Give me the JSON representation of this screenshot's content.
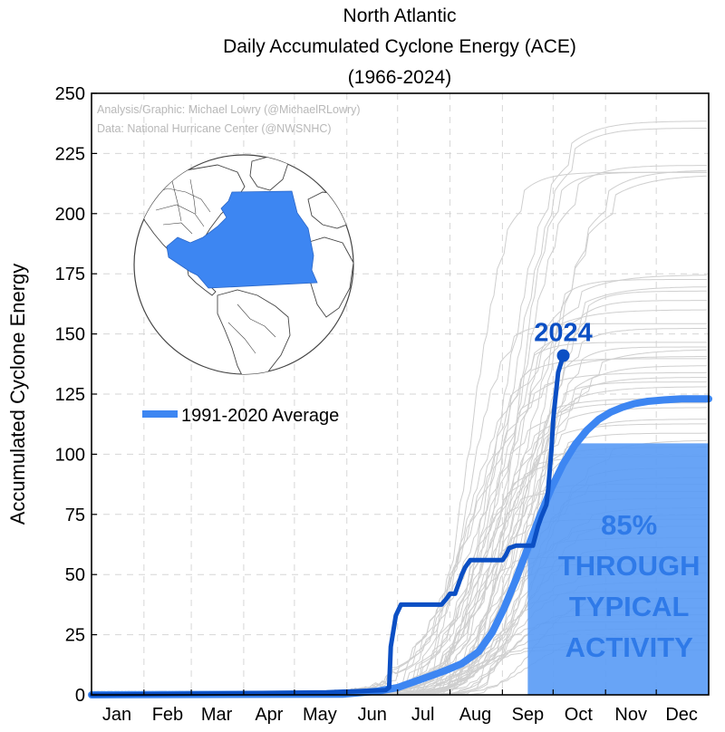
{
  "chart_data": {
    "type": "line",
    "title_lines": [
      "North Atlantic",
      "Daily Accumulated Cyclone Energy (ACE)",
      "(1966-2024)"
    ],
    "ylabel": "Accumulated Cyclone Energy",
    "xlabel": "",
    "ylim": [
      0,
      250
    ],
    "xlim": [
      1,
      366
    ],
    "yticks": [
      0,
      25,
      50,
      75,
      100,
      125,
      150,
      175,
      200,
      225,
      250
    ],
    "xtick_labels": [
      {
        "label": "Jan",
        "day": 16
      },
      {
        "label": "Feb",
        "day": 46
      },
      {
        "label": "Mar",
        "day": 75
      },
      {
        "label": "Apr",
        "day": 106
      },
      {
        "label": "May",
        "day": 136
      },
      {
        "label": "Jun",
        "day": 167
      },
      {
        "label": "Jul",
        "day": 197
      },
      {
        "label": "Aug",
        "day": 228
      },
      {
        "label": "Sep",
        "day": 259
      },
      {
        "label": "Oct",
        "day": 289
      },
      {
        "label": "Nov",
        "day": 320
      },
      {
        "label": "Dec",
        "day": 350
      }
    ],
    "month_boundaries": [
      32,
      60,
      91,
      121,
      152,
      182,
      213,
      244,
      274,
      305,
      335
    ],
    "grid": true,
    "credits": [
      "Analysis/Graphic: Michael Lowry (@MichaelRLowry)",
      "Data: National Hurricane Center (@NWSNHC)"
    ],
    "legend": {
      "label": "1991-2020 Average",
      "position": "middle-left"
    },
    "average_series": {
      "name": "1991-2020 Average",
      "color": "#3d86f2",
      "x": [
        1,
        150,
        170,
        182,
        190,
        200,
        210,
        220,
        230,
        238,
        245,
        252,
        259,
        266,
        273,
        280,
        287,
        294,
        301,
        308,
        315,
        322,
        330,
        340,
        350,
        366
      ],
      "y": [
        0,
        0.3,
        1.5,
        3,
        5,
        7.5,
        10,
        13,
        18,
        26,
        36,
        48,
        61,
        74,
        86,
        96,
        104,
        110,
        114.5,
        117.5,
        119.5,
        121,
        122,
        122.6,
        123,
        123
      ]
    },
    "current_series": {
      "name": "2024",
      "color": "#0b4fc4",
      "x": [
        1,
        140,
        175,
        177,
        178,
        181,
        184,
        187,
        190,
        200,
        208,
        211,
        213,
        216,
        218,
        220,
        222,
        225,
        233,
        240,
        244,
        246,
        248,
        252,
        258,
        262,
        265,
        267,
        270,
        271,
        273,
        274,
        275,
        277,
        280
      ],
      "y": [
        0,
        1,
        2,
        3,
        20,
        33,
        37.5,
        37.5,
        37.5,
        37.5,
        37.5,
        40,
        42,
        42,
        46,
        50,
        53,
        56,
        56,
        56,
        56,
        58,
        61,
        62,
        62,
        62,
        70,
        74,
        79,
        85,
        102,
        114,
        121,
        134,
        141
      ]
    },
    "current_label": "2024",
    "shaded_fraction": {
      "percent": 85,
      "value": 104.5,
      "x_start": 259,
      "x_end": 366
    },
    "overlay_text": [
      "85%",
      "THROUGH",
      "TYPICAL",
      "ACTIVITY"
    ],
    "historical_final_values": [
      247,
      244,
      228,
      226,
      225,
      225,
      224,
      181,
      179,
      176,
      174,
      170,
      166,
      160,
      158,
      152,
      150,
      149,
      146,
      145,
      142,
      139,
      137,
      135,
      133,
      128,
      126,
      124,
      119,
      117,
      113,
      110,
      107,
      103,
      98,
      94,
      91,
      88,
      85,
      81,
      78,
      76,
      73,
      68,
      64,
      60,
      57,
      53,
      49,
      45,
      42,
      38,
      35,
      32,
      29,
      26,
      23,
      20
    ],
    "colors": {
      "historical": "#cfcfcf",
      "grid": "#d6d6d6",
      "shade": "#5b9cf5"
    }
  },
  "map": {
    "caption": ""
  }
}
